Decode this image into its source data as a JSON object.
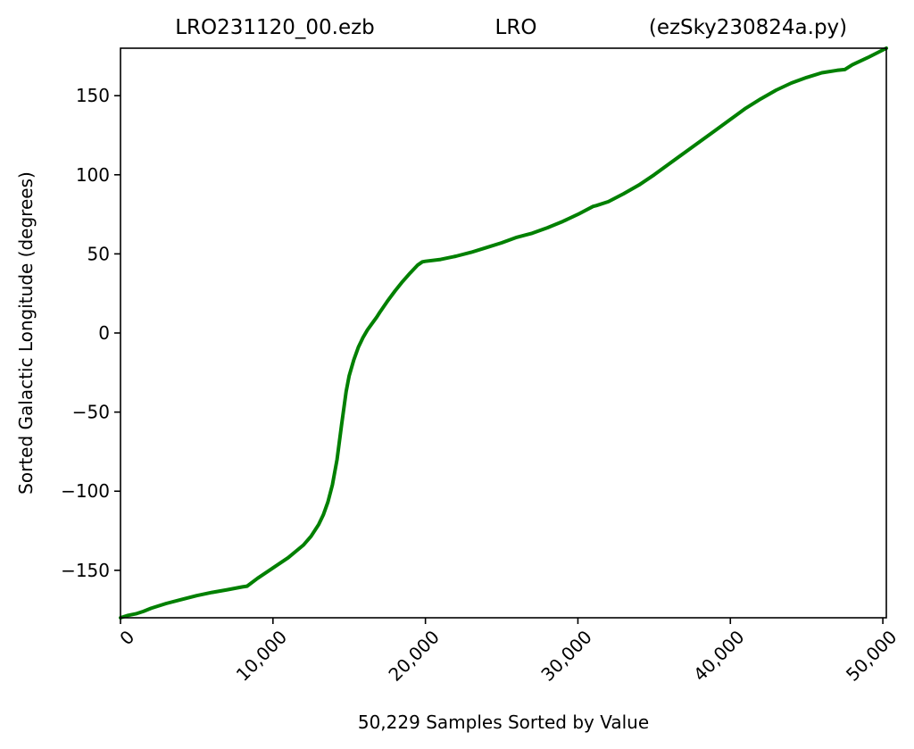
{
  "chart_data": {
    "type": "line",
    "title_parts": {
      "left": "LRO231120_00.ezb",
      "center": "LRO",
      "right": "(ezSky230824a.py)"
    },
    "xlabel": "50,229 Samples Sorted by Value",
    "ylabel": "Sorted Galactic Longitude (degrees)",
    "xlim": [
      0,
      50229
    ],
    "ylim": [
      -180,
      180
    ],
    "xticks": [
      {
        "value": 0,
        "label": "0"
      },
      {
        "value": 10000,
        "label": "10,000"
      },
      {
        "value": 20000,
        "label": "20,000"
      },
      {
        "value": 30000,
        "label": "30,000"
      },
      {
        "value": 40000,
        "label": "40,000"
      },
      {
        "value": 50000,
        "label": "50,000"
      }
    ],
    "yticks": [
      {
        "value": -150,
        "label": "−150"
      },
      {
        "value": -100,
        "label": "−100"
      },
      {
        "value": -50,
        "label": "−50"
      },
      {
        "value": 0,
        "label": "0"
      },
      {
        "value": 50,
        "label": "50"
      },
      {
        "value": 100,
        "label": "100"
      },
      {
        "value": 150,
        "label": "150"
      }
    ],
    "grid": false,
    "series": [
      {
        "color": "#008000",
        "x": [
          0,
          500,
          1000,
          1500,
          2000,
          3000,
          4000,
          5000,
          6000,
          7000,
          8000,
          8300,
          9000,
          10000,
          11000,
          11500,
          12000,
          12500,
          13000,
          13300,
          13600,
          13900,
          14200,
          14500,
          14800,
          15000,
          15300,
          15600,
          15900,
          16200,
          16500,
          16800,
          17000,
          17500,
          18000,
          18500,
          19000,
          19500,
          19800,
          20000,
          21000,
          22000,
          23000,
          24000,
          25000,
          26000,
          26600,
          27000,
          28000,
          29000,
          30000,
          31000,
          31200,
          32000,
          33000,
          34000,
          35000,
          36000,
          37000,
          38000,
          39000,
          40000,
          41000,
          42000,
          43000,
          44000,
          45000,
          46000,
          47000,
          47500,
          48000,
          49000,
          50229
        ],
        "y": [
          -180,
          -178.5,
          -177.5,
          -176,
          -174,
          -171,
          -168.5,
          -166,
          -164,
          -162.3,
          -160.5,
          -160,
          -155,
          -148.5,
          -142,
          -138,
          -134,
          -128.5,
          -121,
          -115,
          -107,
          -96,
          -80,
          -58,
          -37,
          -27,
          -17,
          -9,
          -3,
          2,
          6,
          10,
          13,
          20,
          26.5,
          32.5,
          38,
          43,
          45,
          45.3,
          46.5,
          48.5,
          51,
          54,
          57,
          60.5,
          62,
          63,
          66.5,
          70.5,
          75,
          80,
          80.5,
          83,
          88,
          93.5,
          100,
          107,
          114,
          121,
          128,
          135,
          142,
          148,
          153.5,
          158,
          161.5,
          164.5,
          166,
          166.5,
          169.5,
          174,
          180
        ]
      }
    ]
  }
}
